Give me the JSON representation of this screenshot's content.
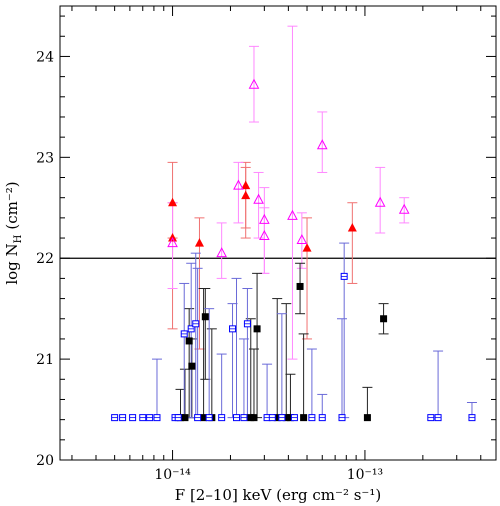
{
  "chart_data": {
    "type": "scatter",
    "title": "",
    "xlabel": "F [2–10] keV (erg cm⁻² s⁻¹)",
    "ylabel_main": "log N",
    "ylabel_sub": "H",
    "ylabel_unit": "(cm⁻²)",
    "x_scale": "log",
    "xlim": [
      2.6e-15,
      4.8e-13
    ],
    "ylim": [
      20.0,
      24.5
    ],
    "y_ticks": [
      20,
      21,
      22,
      23,
      24
    ],
    "x_major_ticks": [
      1e-14,
      1e-13
    ],
    "x_tick_labels": [
      "10⁻¹⁴",
      "10⁻¹³"
    ],
    "x_minor_ticks": [
      3e-15,
      4e-15,
      5e-15,
      6e-15,
      7e-15,
      8e-15,
      9e-15,
      2e-14,
      3e-14,
      4e-14,
      5e-14,
      6e-14,
      7e-14,
      8e-14,
      9e-14,
      2e-13,
      3e-13,
      4e-13
    ],
    "reference_line_y": 22.0,
    "grid": false,
    "colors": {
      "red": "#ff0000",
      "red_err": "#f07070",
      "magenta": "#ff00ff",
      "magenta_err": "#ff88ff",
      "blue": "#0000ff",
      "blue_err": "#6a6ad8",
      "black": "#000000",
      "black_err": "#222222",
      "ref_line": "#000000"
    },
    "series": [
      {
        "marker": "filled-triangle",
        "color_key": "red",
        "points": [
          {
            "x": 1e-14,
            "y": 22.55,
            "ylo": 22.2,
            "yhi": 22.95
          },
          {
            "x": 1e-14,
            "y": 22.2,
            "ylo": 21.3,
            "yhi": 22.55
          },
          {
            "x": 1.38e-14,
            "y": 22.15,
            "ylo": 21.1,
            "yhi": 22.4
          },
          {
            "x": 2.4e-14,
            "y": 22.72,
            "ylo": 22.3,
            "yhi": 22.95
          },
          {
            "x": 2.4e-14,
            "y": 22.62,
            "ylo": 22.2,
            "yhi": 22.9
          },
          {
            "x": 5e-14,
            "y": 22.1,
            "ylo": 21.2,
            "yhi": 22.4
          },
          {
            "x": 8.6e-14,
            "y": 22.3,
            "ylo": 21.75,
            "yhi": 22.55
          }
        ]
      },
      {
        "marker": "open-triangle",
        "color_key": "magenta",
        "points": [
          {
            "x": 2.65e-14,
            "y": 23.72,
            "ylo": 23.35,
            "yhi": 24.1
          },
          {
            "x": 3e-14,
            "y": 22.38,
            "ylo": 21.85,
            "yhi": 22.7
          },
          {
            "x": 3e-14,
            "y": 22.22,
            "ylo": 21.85,
            "yhi": 22.5
          },
          {
            "x": 2.2e-14,
            "y": 22.72,
            "ylo": 22.35,
            "yhi": 22.95
          },
          {
            "x": 2.8e-14,
            "y": 22.58,
            "ylo": 22.2,
            "yhi": 22.85
          },
          {
            "x": 1e-14,
            "y": 22.15,
            "ylo": 21.7,
            "yhi": 22.55
          },
          {
            "x": 1.8e-14,
            "y": 22.05,
            "ylo": 21.8,
            "yhi": 22.35
          },
          {
            "x": 4.2e-14,
            "y": 22.42,
            "ylo": 21.0,
            "yhi": 24.3
          },
          {
            "x": 4.7e-14,
            "y": 22.18,
            "ylo": 21.9,
            "yhi": 22.45
          },
          {
            "x": 6e-14,
            "y": 23.12,
            "ylo": 22.85,
            "yhi": 23.45
          },
          {
            "x": 1.2e-13,
            "y": 22.55,
            "ylo": 22.25,
            "yhi": 22.9
          },
          {
            "x": 1.6e-13,
            "y": 22.48,
            "ylo": 22.35,
            "yhi": 22.6
          }
        ]
      },
      {
        "marker": "filled-square",
        "color_key": "black",
        "points": [
          {
            "x": 1.22e-14,
            "y": 21.18,
            "ylo": 20.42,
            "yhi": 21.5
          },
          {
            "x": 1.26e-14,
            "y": 20.93,
            "ylo": 20.42,
            "yhi": 21.2
          },
          {
            "x": 1.48e-14,
            "y": 21.42,
            "ylo": 20.8,
            "yhi": 21.7
          },
          {
            "x": 2.75e-14,
            "y": 21.3,
            "ylo": 20.42,
            "yhi": 21.85
          },
          {
            "x": 4.6e-14,
            "y": 21.72,
            "ylo": 21.45,
            "yhi": 21.95
          },
          {
            "x": 1.25e-13,
            "y": 21.4,
            "ylo": 21.25,
            "yhi": 21.55
          },
          {
            "x": 1.03e-13,
            "y": 20.42,
            "ylo": 20.42,
            "yhi": 20.72
          },
          {
            "x": 1.1e-14,
            "y": 20.42,
            "ylo": 20.42,
            "yhi": 20.7
          },
          {
            "x": 1.16e-14,
            "y": 20.42,
            "ylo": 20.42,
            "yhi": 20.9
          },
          {
            "x": 1.45e-14,
            "y": 20.42,
            "ylo": 20.42,
            "yhi": 21.7
          },
          {
            "x": 1.6e-14,
            "y": 20.42,
            "ylo": 20.42,
            "yhi": 21.3
          },
          {
            "x": 2.55e-14,
            "y": 20.42,
            "ylo": 20.42,
            "yhi": 21.4
          },
          {
            "x": 2.65e-14,
            "y": 20.42,
            "ylo": 20.42,
            "yhi": 21.1
          },
          {
            "x": 3.5e-14,
            "y": 20.42,
            "ylo": 20.42,
            "yhi": 21.6
          },
          {
            "x": 3.9e-14,
            "y": 20.42,
            "ylo": 20.42,
            "yhi": 21.55
          },
          {
            "x": 4.1e-14,
            "y": 20.42,
            "ylo": 20.42,
            "yhi": 20.85
          },
          {
            "x": 4.8e-14,
            "y": 20.42,
            "ylo": 20.42,
            "yhi": 21.25
          }
        ]
      },
      {
        "marker": "open-square",
        "color_key": "blue",
        "points": [
          {
            "x": 1.15e-14,
            "y": 21.25,
            "ylo": 20.42,
            "yhi": 21.75
          },
          {
            "x": 1.25e-14,
            "y": 21.3,
            "ylo": 20.42,
            "yhi": 21.95
          },
          {
            "x": 1.32e-14,
            "y": 21.35,
            "ylo": 20.42,
            "yhi": 22.05
          },
          {
            "x": 2.05e-14,
            "y": 21.3,
            "ylo": 20.42,
            "yhi": 21.55
          },
          {
            "x": 2.45e-14,
            "y": 21.35,
            "ylo": 20.42,
            "yhi": 21.7
          },
          {
            "x": 7.8e-14,
            "y": 21.82,
            "ylo": 20.42,
            "yhi": 22.15
          },
          {
            "x": 5e-15,
            "y": 20.42
          },
          {
            "x": 5.5e-15,
            "y": 20.42
          },
          {
            "x": 6.2e-15,
            "y": 20.42
          },
          {
            "x": 7e-15,
            "y": 20.42
          },
          {
            "x": 7.6e-15,
            "y": 20.42
          },
          {
            "x": 8.3e-15,
            "y": 20.42,
            "ylo": 20.42,
            "yhi": 21.0
          },
          {
            "x": 1.03e-14,
            "y": 20.42
          },
          {
            "x": 1.07e-14,
            "y": 20.42
          },
          {
            "x": 1.35e-14,
            "y": 20.42,
            "ylo": 20.42,
            "yhi": 21.9
          },
          {
            "x": 1.55e-14,
            "y": 20.42,
            "ylo": 20.42,
            "yhi": 21.5
          },
          {
            "x": 1.8e-14,
            "y": 20.42,
            "ylo": 20.42,
            "yhi": 21.05
          },
          {
            "x": 2.15e-14,
            "y": 20.42,
            "ylo": 20.42,
            "yhi": 21.8
          },
          {
            "x": 2.35e-14,
            "y": 20.42,
            "ylo": 20.42,
            "yhi": 21.2
          },
          {
            "x": 3.1e-14,
            "y": 20.42,
            "ylo": 20.42,
            "yhi": 20.95
          },
          {
            "x": 3.3e-14,
            "y": 20.42
          },
          {
            "x": 3.7e-14,
            "y": 20.42,
            "ylo": 20.42,
            "yhi": 21.45
          },
          {
            "x": 4.3e-14,
            "y": 20.42
          },
          {
            "x": 5.3e-14,
            "y": 20.42,
            "ylo": 20.42,
            "yhi": 21.1
          },
          {
            "x": 6e-14,
            "y": 20.42,
            "ylo": 20.42,
            "yhi": 20.65
          },
          {
            "x": 7.6e-14,
            "y": 20.42,
            "ylo": 20.42,
            "yhi": 21.4
          },
          {
            "x": 2.2e-13,
            "y": 20.42
          },
          {
            "x": 2.4e-13,
            "y": 20.42,
            "ylo": 20.42,
            "yhi": 21.08
          },
          {
            "x": 3.6e-13,
            "y": 20.42,
            "ylo": 20.42,
            "yhi": 20.57
          }
        ]
      }
    ]
  }
}
